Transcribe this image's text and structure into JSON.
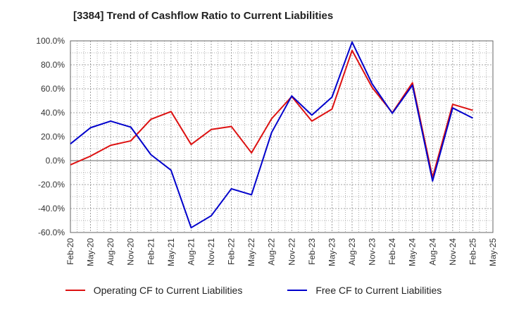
{
  "title": "[3384]  Trend of Cashflow Ratio to Current Liabilities",
  "chart_data": {
    "type": "line",
    "title": "[3384]  Trend of Cashflow Ratio to Current Liabilities",
    "xlabel": "",
    "ylabel": "",
    "categories": [
      "Feb-20",
      "May-20",
      "Aug-20",
      "Nov-20",
      "Feb-21",
      "May-21",
      "Aug-21",
      "Nov-21",
      "Feb-22",
      "May-22",
      "Aug-22",
      "Nov-22",
      "Feb-23",
      "May-23",
      "Aug-23",
      "Nov-23",
      "Feb-24",
      "May-24",
      "Aug-24",
      "Nov-24",
      "Feb-25",
      "May-25"
    ],
    "y_ticks": [
      "100.0%",
      "80.0%",
      "60.0%",
      "40.0%",
      "20.0%",
      "0.0%",
      "-20.0%",
      "-40.0%",
      "-60.0%"
    ],
    "ylim": [
      -60,
      100
    ],
    "grid": true,
    "legend_position": "bottom",
    "series": [
      {
        "name": "Operating CF to Current Liabilities",
        "color": "#dd1111",
        "values": [
          -3.5,
          3.8,
          12.8,
          16.5,
          34.5,
          41.0,
          13.5,
          26.0,
          28.5,
          6.5,
          35.0,
          53.5,
          33.0,
          43.0,
          92.0,
          61.0,
          40.0,
          65.0,
          -14.0,
          47.0,
          42.0,
          null
        ]
      },
      {
        "name": "Free CF to Current Liabilities",
        "color": "#0000cc",
        "values": [
          14.0,
          27.5,
          33.0,
          28.0,
          5.0,
          -8.0,
          -56.0,
          -46.0,
          -23.5,
          -28.5,
          23.5,
          54.0,
          38.0,
          53.0,
          99.0,
          64.0,
          39.5,
          63.0,
          -17.0,
          44.0,
          35.5,
          null
        ]
      }
    ]
  }
}
